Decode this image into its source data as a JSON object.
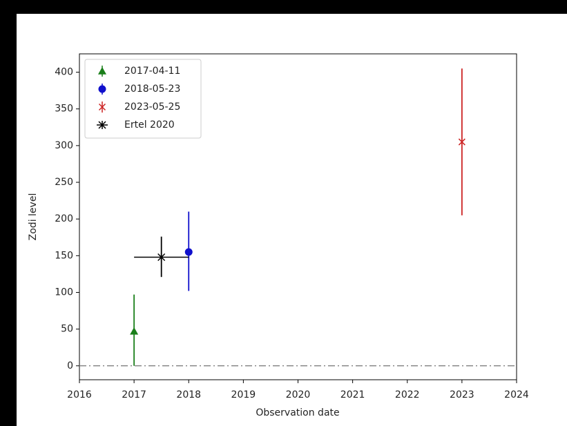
{
  "chart_data": {
    "type": "errorbar",
    "xlabel": "Observation date",
    "ylabel": "Zodi level",
    "xlim": [
      2016,
      2024
    ],
    "xticks": [
      2016,
      2017,
      2018,
      2019,
      2020,
      2021,
      2022,
      2023,
      2024
    ],
    "ylim": [
      -19,
      425
    ],
    "yticks": [
      0,
      50,
      100,
      150,
      200,
      250,
      300,
      350,
      400
    ],
    "reference_line": {
      "y": 0,
      "color": "#888888"
    },
    "legend": "upper left",
    "series": [
      {
        "name": "2017-04-11",
        "color": "#1a7f1a",
        "marker": "triangle",
        "x": 2017,
        "y": 47,
        "yerr_lower": 47,
        "yerr_upper": 50
      },
      {
        "name": "2018-05-23",
        "color": "#1010cc",
        "marker": "circle",
        "x": 2018,
        "y": 155,
        "yerr_lower": 53,
        "yerr_upper": 55
      },
      {
        "name": "2023-05-25",
        "color": "#cc2222",
        "marker": "x",
        "x": 2023,
        "y": 305,
        "yerr_lower": 100,
        "yerr_upper": 100
      },
      {
        "name": "Ertel 2020",
        "color": "#000000",
        "marker": "star",
        "x": 2017.5,
        "xerr": 0.5,
        "y": 148,
        "yerr_lower": 27,
        "yerr_upper": 28
      }
    ]
  }
}
